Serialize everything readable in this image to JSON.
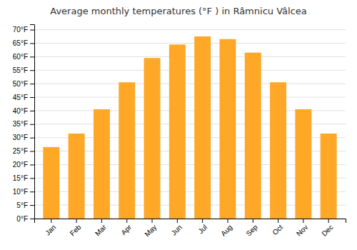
{
  "chart_data": {
    "type": "bar",
    "title": "Average monthly temperatures (°F ) in Râmnicu Vâlcea",
    "categories": [
      "Jan",
      "Feb",
      "Mar",
      "Apr",
      "May",
      "Jun",
      "Jul",
      "Aug",
      "Sep",
      "Oct",
      "Nov",
      "Dec"
    ],
    "values": [
      26.5,
      31.5,
      40.5,
      50.5,
      59.5,
      64.5,
      67.5,
      66.5,
      61.5,
      50.5,
      40.5,
      31.5
    ],
    "color": "#FFA726",
    "ylim": [
      0,
      72
    ],
    "yticks": [
      {
        "value": 0,
        "label": "0°F"
      },
      {
        "value": 5,
        "label": "5°F"
      },
      {
        "value": 10,
        "label": "10°F"
      },
      {
        "value": 15,
        "label": "15°F"
      },
      {
        "value": 20,
        "label": "20°F"
      },
      {
        "value": 25,
        "label": "25°F"
      },
      {
        "value": 30,
        "label": "30°F"
      },
      {
        "value": 35,
        "label": "35°F"
      },
      {
        "value": 40,
        "label": "40°F"
      },
      {
        "value": 45,
        "label": "45°F"
      },
      {
        "value": 50,
        "label": "50°F"
      },
      {
        "value": 55,
        "label": "55°F"
      },
      {
        "value": 60,
        "label": "60°F"
      },
      {
        "value": 65,
        "label": "65°F"
      },
      {
        "value": 70,
        "label": "70°F"
      }
    ],
    "grid": true
  }
}
